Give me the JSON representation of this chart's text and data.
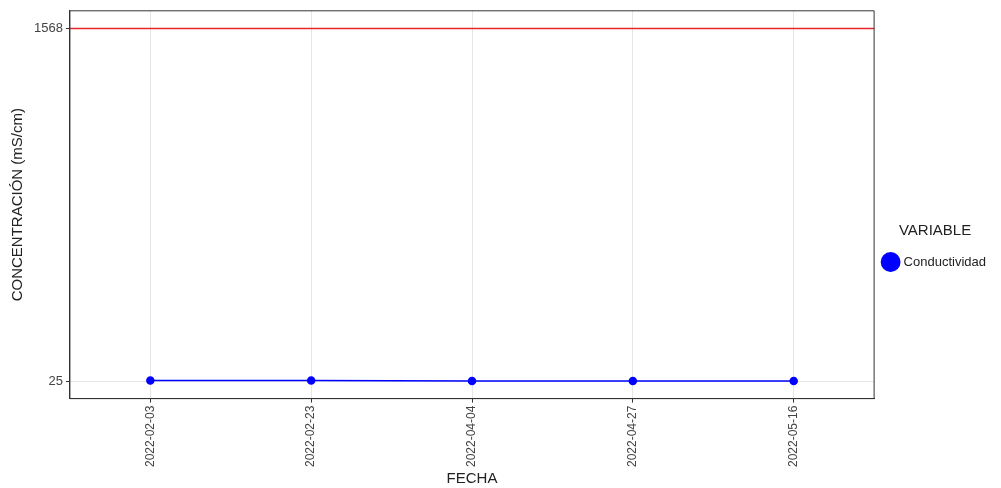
{
  "chart_data": {
    "type": "line",
    "xlabel": "FECHA",
    "ylabel": "CONCENTRACIÓN (mS/cm)",
    "legend_title": "VARIABLE",
    "categories": [
      "2022-02-03",
      "2022-02-23",
      "2022-04-04",
      "2022-04-27",
      "2022-05-16"
    ],
    "series": [
      {
        "name": "Conductividad",
        "color": "#0000ff",
        "values": [
          27,
          27,
          25,
          25,
          25
        ]
      }
    ],
    "ylim": [
      -52,
      1645
    ],
    "yticks": [
      25,
      1568
    ],
    "ref_lines": [
      {
        "axis": "y",
        "value": 1568,
        "color": "#e8262a",
        "line_style": "solid"
      }
    ],
    "grid": true,
    "legend": "right",
    "marker": "circle",
    "line_style": "solid"
  }
}
